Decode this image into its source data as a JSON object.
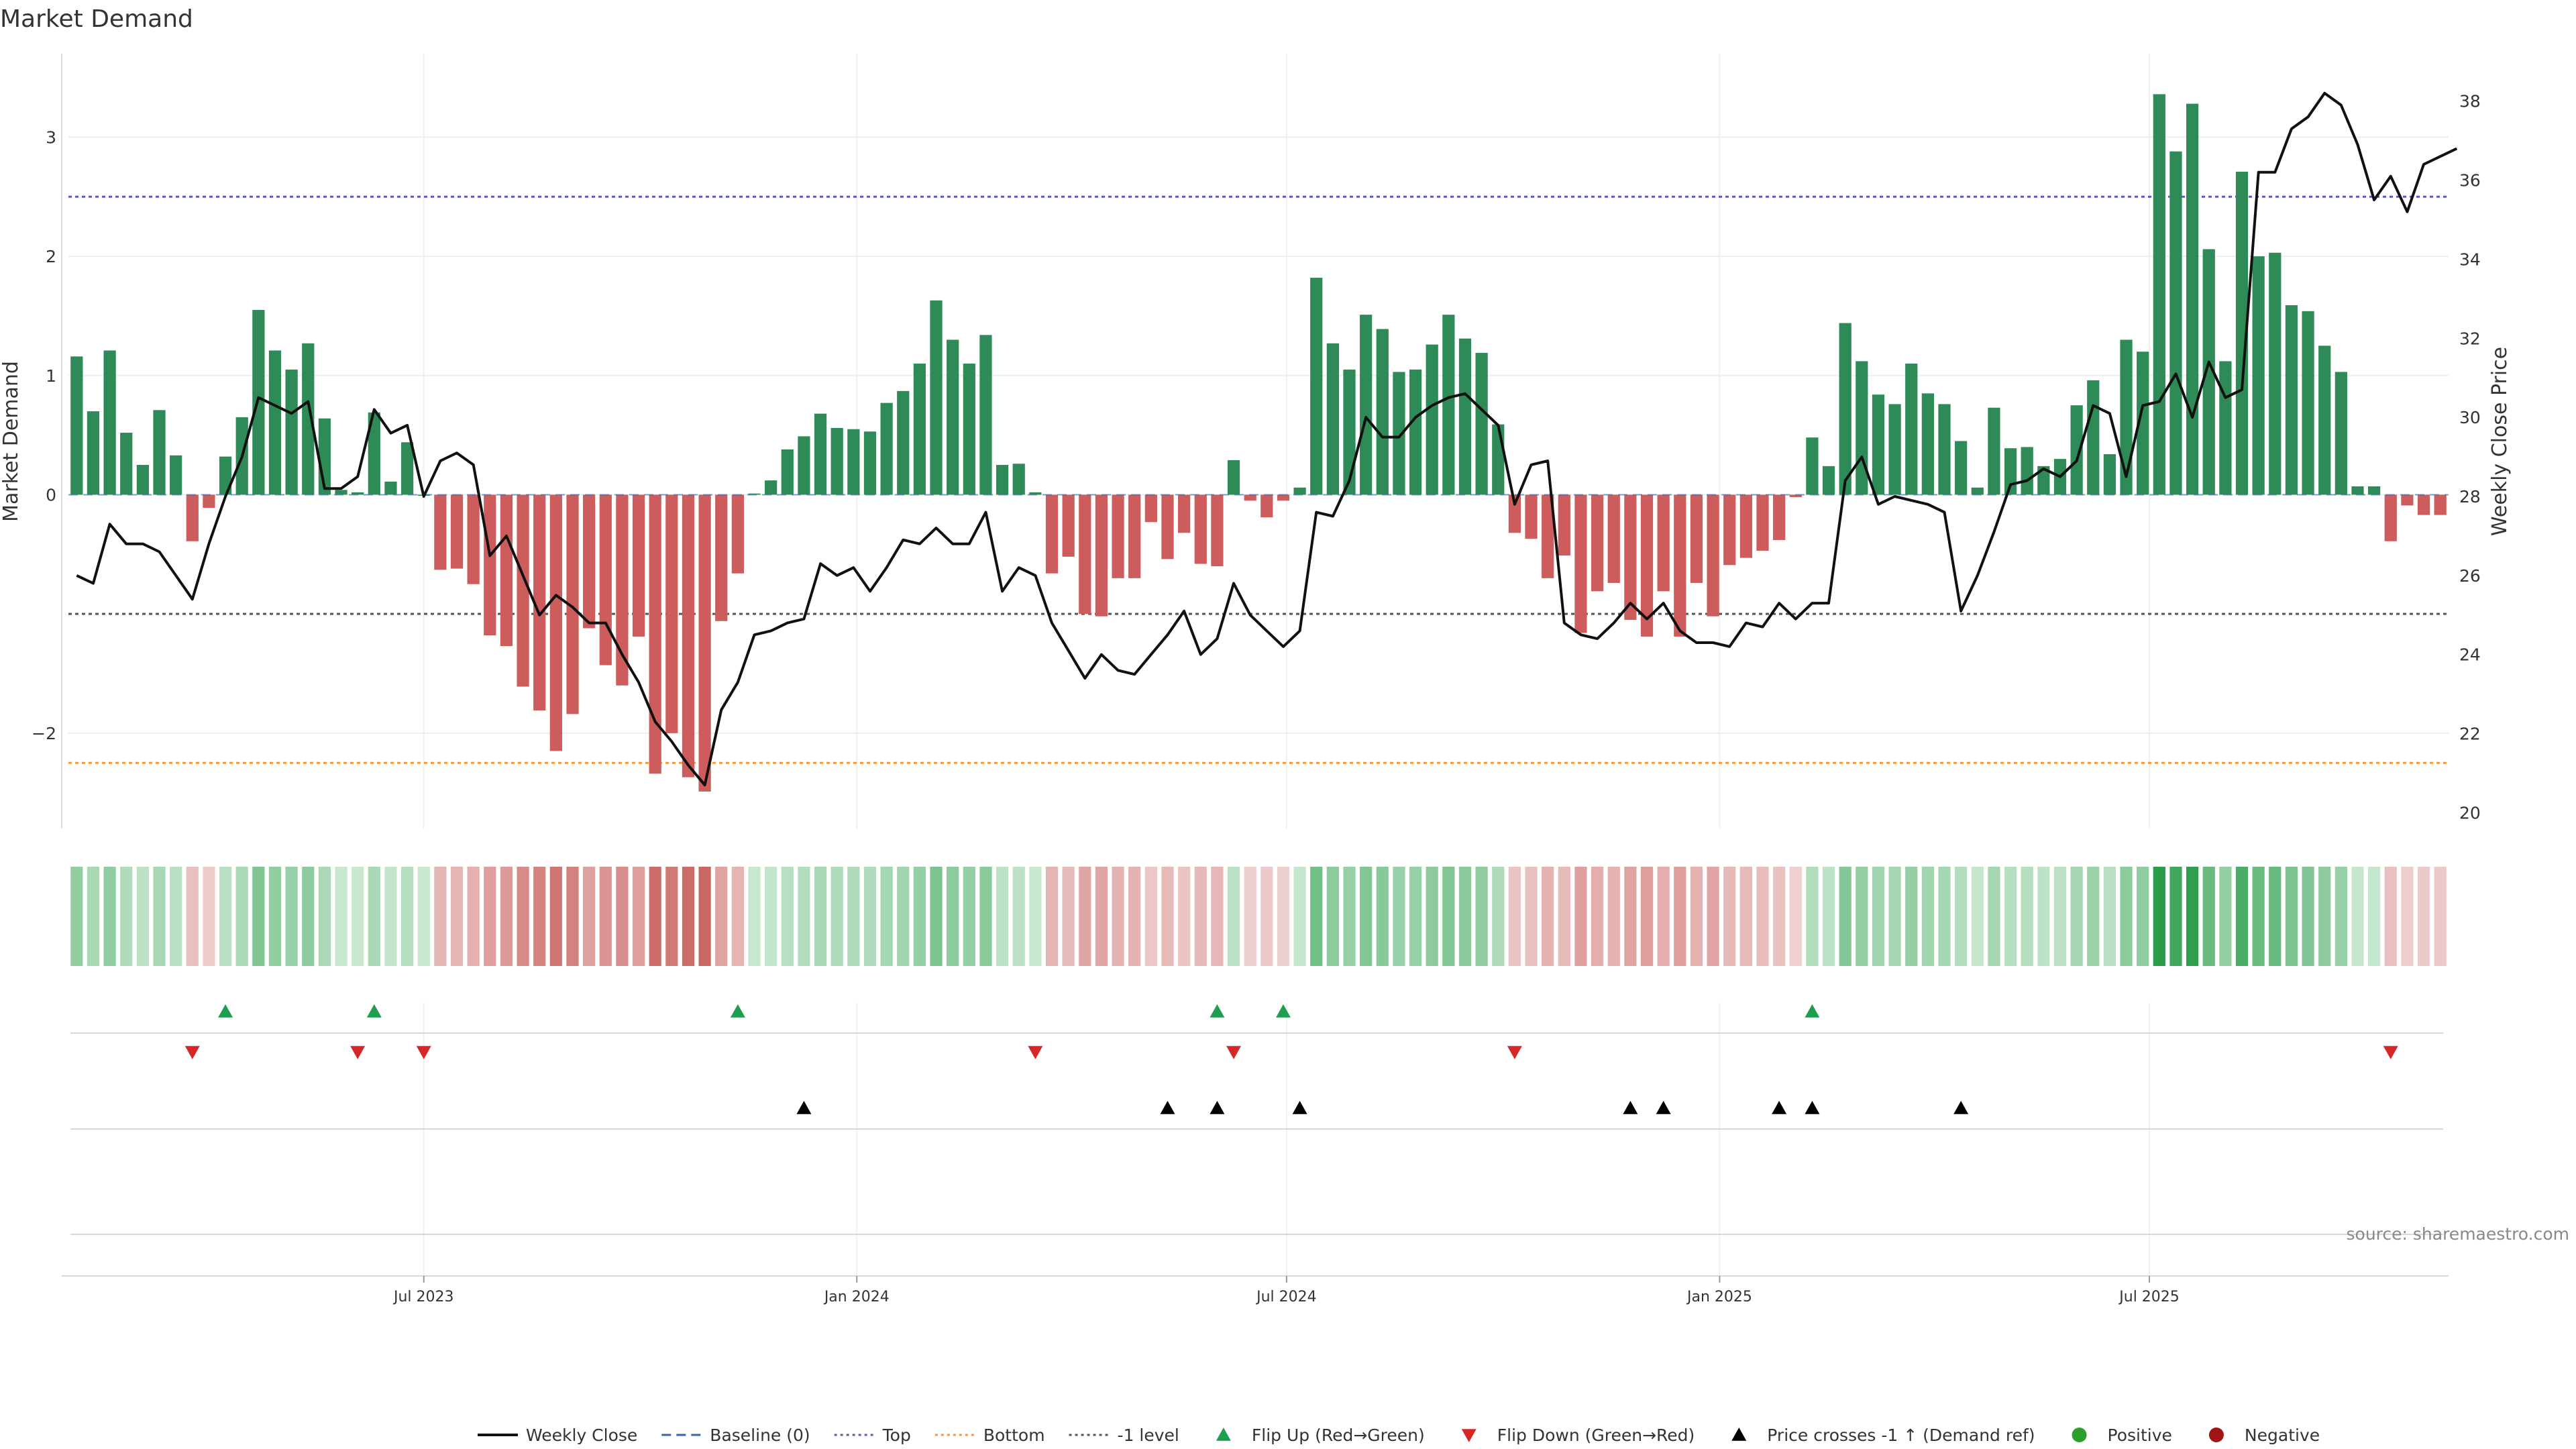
{
  "chart_data": {
    "type": "bar",
    "title": "Market Demand",
    "ylabel_left": "Market Demand",
    "ylabel_right": "Weekly Close Price",
    "source": "source: sharemaestro.com",
    "left_ylim": [
      -2.8,
      3.7
    ],
    "left_yticks": [
      "3",
      "2",
      "1",
      "0",
      "−2"
    ],
    "left_ytick_values": [
      3,
      2,
      1,
      0,
      -2
    ],
    "right_ylim": [
      19.6,
      39.2
    ],
    "right_yticks": [
      "38",
      "36",
      "34",
      "32",
      "30",
      "28",
      "26",
      "24",
      "22",
      "20"
    ],
    "right_ytick_values": [
      38,
      36,
      34,
      32,
      30,
      28,
      26,
      24,
      22,
      20
    ],
    "week_range": [
      0,
      144
    ],
    "x_labels": [
      {
        "label": "Jul 2023",
        "week": 21.5
      },
      {
        "label": "Jan 2024",
        "week": 47.7
      },
      {
        "label": "Jul 2024",
        "week": 73.7
      },
      {
        "label": "Jan 2025",
        "week": 99.9
      },
      {
        "label": "Jul 2025",
        "week": 125.9
      }
    ],
    "reference_lines": [
      {
        "name": "Top",
        "value": 2.5,
        "color": "#5b5bb5"
      },
      {
        "name": "Bottom",
        "value": -2.25,
        "color": "#f2993a"
      },
      {
        "name": "-1 level",
        "value": -1,
        "color": "#555555"
      }
    ],
    "demand": [
      1.16,
      0.7,
      1.21,
      0.52,
      0.25,
      0.71,
      0.33,
      -0.39,
      -0.11,
      0.32,
      0.65,
      1.55,
      1.21,
      1.05,
      1.27,
      0.64,
      0.04,
      0.02,
      0.69,
      0.11,
      0.44,
      0.0,
      -0.63,
      -0.62,
      -0.75,
      -1.18,
      -1.27,
      -1.61,
      -1.81,
      -2.15,
      -1.84,
      -1.12,
      -1.43,
      -1.6,
      -1.19,
      -2.34,
      -2.0,
      -2.37,
      -2.49,
      -1.06,
      -0.66,
      0.01,
      0.12,
      0.38,
      0.49,
      0.68,
      0.56,
      0.55,
      0.53,
      0.77,
      0.87,
      1.1,
      1.63,
      1.3,
      1.1,
      1.34,
      0.25,
      0.26,
      0.02,
      -0.66,
      -0.52,
      -1.0,
      -1.02,
      -0.7,
      -0.7,
      -0.23,
      -0.54,
      -0.32,
      -0.58,
      -0.6,
      0.29,
      -0.05,
      -0.19,
      -0.05,
      0.06,
      1.82,
      1.27,
      1.05,
      1.51,
      1.39,
      1.03,
      1.05,
      1.26,
      1.51,
      1.31,
      1.19,
      0.59,
      -0.32,
      -0.37,
      -0.7,
      -0.51,
      -1.16,
      -0.81,
      -0.74,
      -1.05,
      -1.19,
      -0.81,
      -1.19,
      -0.74,
      -1.02,
      -0.59,
      -0.53,
      -0.47,
      -0.38,
      -0.02,
      0.48,
      0.24,
      1.44,
      1.12,
      0.84,
      0.76,
      1.1,
      0.85,
      0.76,
      0.45,
      0.06,
      0.73,
      0.39,
      0.4,
      0.24,
      0.3,
      0.75,
      0.96,
      0.34,
      1.3,
      1.2,
      3.36,
      2.88,
      3.28,
      2.06,
      1.12,
      2.71,
      2.0,
      2.03,
      1.59,
      1.54,
      1.25,
      1.03,
      0.07,
      0.07,
      -0.39,
      -0.09,
      -0.17,
      -0.17
    ],
    "price": [
      26.0,
      25.8,
      27.3,
      26.8,
      26.8,
      26.6,
      26.0,
      25.4,
      26.8,
      28.0,
      29.0,
      30.5,
      30.3,
      30.1,
      30.4,
      28.2,
      28.2,
      28.5,
      30.2,
      29.6,
      29.8,
      28.0,
      28.9,
      29.1,
      28.8,
      26.5,
      27.0,
      26.0,
      25.0,
      25.5,
      25.2,
      24.8,
      24.8,
      24.0,
      23.3,
      22.3,
      21.8,
      21.2,
      20.7,
      22.6,
      23.3,
      24.5,
      24.6,
      24.8,
      24.9,
      26.3,
      26.0,
      26.2,
      25.6,
      26.2,
      26.9,
      26.8,
      27.2,
      26.8,
      26.8,
      27.6,
      25.6,
      26.2,
      26.0,
      24.8,
      24.1,
      23.4,
      24.0,
      23.6,
      23.5,
      24.0,
      24.5,
      25.1,
      24.0,
      24.4,
      25.8,
      25.0,
      24.6,
      24.2,
      24.6,
      27.6,
      27.5,
      28.4,
      30.0,
      29.5,
      29.5,
      30.0,
      30.3,
      30.5,
      30.6,
      30.2,
      29.8,
      27.8,
      28.8,
      28.9,
      24.8,
      24.5,
      24.4,
      24.8,
      25.3,
      24.9,
      25.3,
      24.6,
      24.3,
      24.3,
      24.2,
      24.8,
      24.7,
      25.3,
      24.9,
      25.3,
      25.3,
      28.4,
      29.0,
      27.8,
      28.0,
      27.9,
      27.8,
      27.6,
      25.1,
      26.0,
      27.1,
      28.3,
      28.4,
      28.7,
      28.5,
      28.9,
      30.3,
      30.1,
      28.5,
      30.3,
      30.4,
      31.1,
      30.0,
      31.4,
      30.5,
      30.7,
      36.2,
      36.2,
      37.3,
      37.6,
      38.2,
      37.9,
      36.9,
      35.5,
      36.1,
      35.2,
      36.4,
      36.6,
      36.8
    ],
    "flip_up_weeks": [
      9,
      18,
      40,
      69,
      73,
      105
    ],
    "flip_down_weeks": [
      7,
      17,
      21,
      58,
      70,
      87,
      140
    ],
    "price_cross_weeks": [
      44,
      66,
      69,
      74,
      94,
      96,
      103,
      105,
      114
    ],
    "colors": {
      "positive_bar": "#2e8b57",
      "negative_bar": "#cd5c5c",
      "weekly_close": "#111111",
      "baseline": "#3366aa",
      "flip_up": "#1f9e4f",
      "flip_down": "#d62728",
      "price_cross": "#000000",
      "positive": "#2ca02c",
      "negative": "#a31515"
    },
    "legend": [
      {
        "label": "Weekly Close",
        "kind": "line",
        "color": "#111111"
      },
      {
        "label": "Baseline (0)",
        "kind": "dash",
        "color": "#3366aa"
      },
      {
        "label": "Top",
        "kind": "dot",
        "color": "#5b5bb5"
      },
      {
        "label": "Bottom",
        "kind": "dot",
        "color": "#f2993a"
      },
      {
        "label": "-1 level",
        "kind": "dot",
        "color": "#555555"
      },
      {
        "label": "Flip Up (Red→Green)",
        "kind": "tri-up",
        "color": "#1f9e4f"
      },
      {
        "label": "Flip Down (Green→Red)",
        "kind": "tri-down",
        "color": "#d62728"
      },
      {
        "label": "Price crosses -1 ↑ (Demand ref)",
        "kind": "tri-up",
        "color": "#000000"
      },
      {
        "label": "Positive",
        "kind": "circle",
        "color": "#2ca02c"
      },
      {
        "label": "Negative",
        "kind": "circle",
        "color": "#a31515"
      }
    ]
  }
}
